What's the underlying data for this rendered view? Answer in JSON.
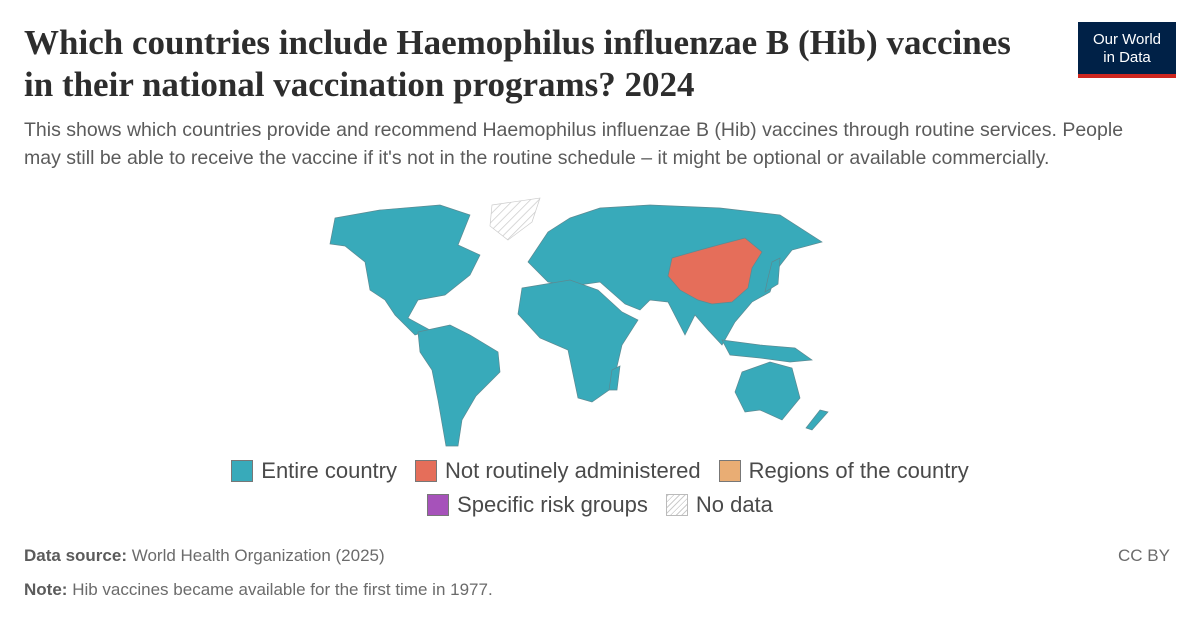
{
  "header": {
    "title": "Which countries include Haemophilus influenzae B (Hib) vaccines in their national vaccination programs? 2024",
    "subtitle": "This shows which countries provide and recommend Haemophilus influenzae B (Hib) vaccines through routine services. People may still be able to receive the vaccine if it's not in the routine schedule – it might be optional or available commercially.",
    "logo": [
      "Our World",
      "in Data"
    ]
  },
  "legend": [
    {
      "name": "Entire country",
      "color": "#38aaba"
    },
    {
      "name": "Not routinely administered",
      "color": "#e56e5a"
    },
    {
      "name": "Regions of the country",
      "color": "#e9ad74"
    },
    {
      "name": "Specific risk groups",
      "color": "#a652ba"
    },
    {
      "name": "No data",
      "color": "hatch"
    }
  ],
  "footer": {
    "source_label": "Data source:",
    "source": "World Health Organization (2025)",
    "license": "CC BY",
    "note_label": "Note:",
    "note": "Hib vaccines became available for the first time in 1977."
  }
}
